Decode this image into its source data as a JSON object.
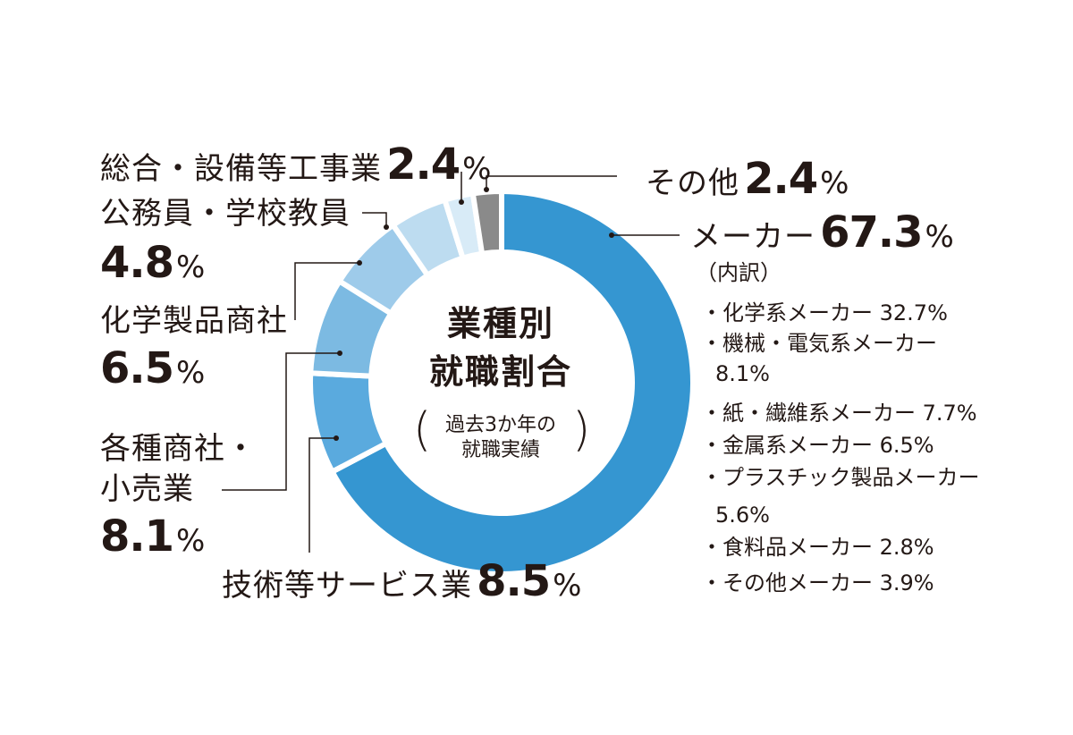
{
  "chart_data": {
    "type": "pie",
    "style": "donut",
    "slices": [
      {
        "label": "メーカー",
        "value": 67.3,
        "color": "#3596d1"
      },
      {
        "label": "技術等サービス業",
        "value": 8.5,
        "color": "#5aaade"
      },
      {
        "label": "各種商社・小売業",
        "value": 8.1,
        "color": "#7cbae2"
      },
      {
        "label": "化学製品商社",
        "value": 6.5,
        "color": "#9ecbea"
      },
      {
        "label": "公務員・学校教員",
        "value": 4.8,
        "color": "#bddcf0"
      },
      {
        "label": "総合・設備等工事業",
        "value": 2.4,
        "color": "#d8ebf7"
      },
      {
        "label": "その他",
        "value": 2.4,
        "color": "#8a8a8a"
      }
    ]
  },
  "center": {
    "title_line1": "業種別",
    "title_line2": "就職割合",
    "note_line1": "過去3か年の",
    "note_line2": "就職実績",
    "paren_open": "(",
    "paren_close": ")"
  },
  "labels": {
    "sogo_name": "総合・設備等工事業",
    "sogo_value": "2.4",
    "koumu_name": "公務員・学校教員",
    "koumu_value": "4.8",
    "kagaku_name": "化学製品商社",
    "kagaku_value": "6.5",
    "kakushu_name_line1": "各種商社・",
    "kakushu_name_line2": "小売業",
    "kakushu_value": "8.1",
    "gijutsu_name": "技術等サービス業",
    "gijutsu_value": "8.5",
    "sonota_name": "その他",
    "sonota_value": "2.4",
    "maker_name": "メーカー",
    "maker_value": "67.3",
    "percent_sign": "%"
  },
  "breakdown": {
    "heading": "（内訳）",
    "items": [
      "・化学系メーカー 32.7%",
      "・機械・電気系メーカー",
      "8.1%",
      "・紙・繊維系メーカー 7.7%",
      "・金属系メーカー 6.5%",
      "・プラスチック製品メーカー",
      "5.6%",
      "・食料品メーカー 2.8%",
      "・その他メーカー 3.9%"
    ]
  }
}
